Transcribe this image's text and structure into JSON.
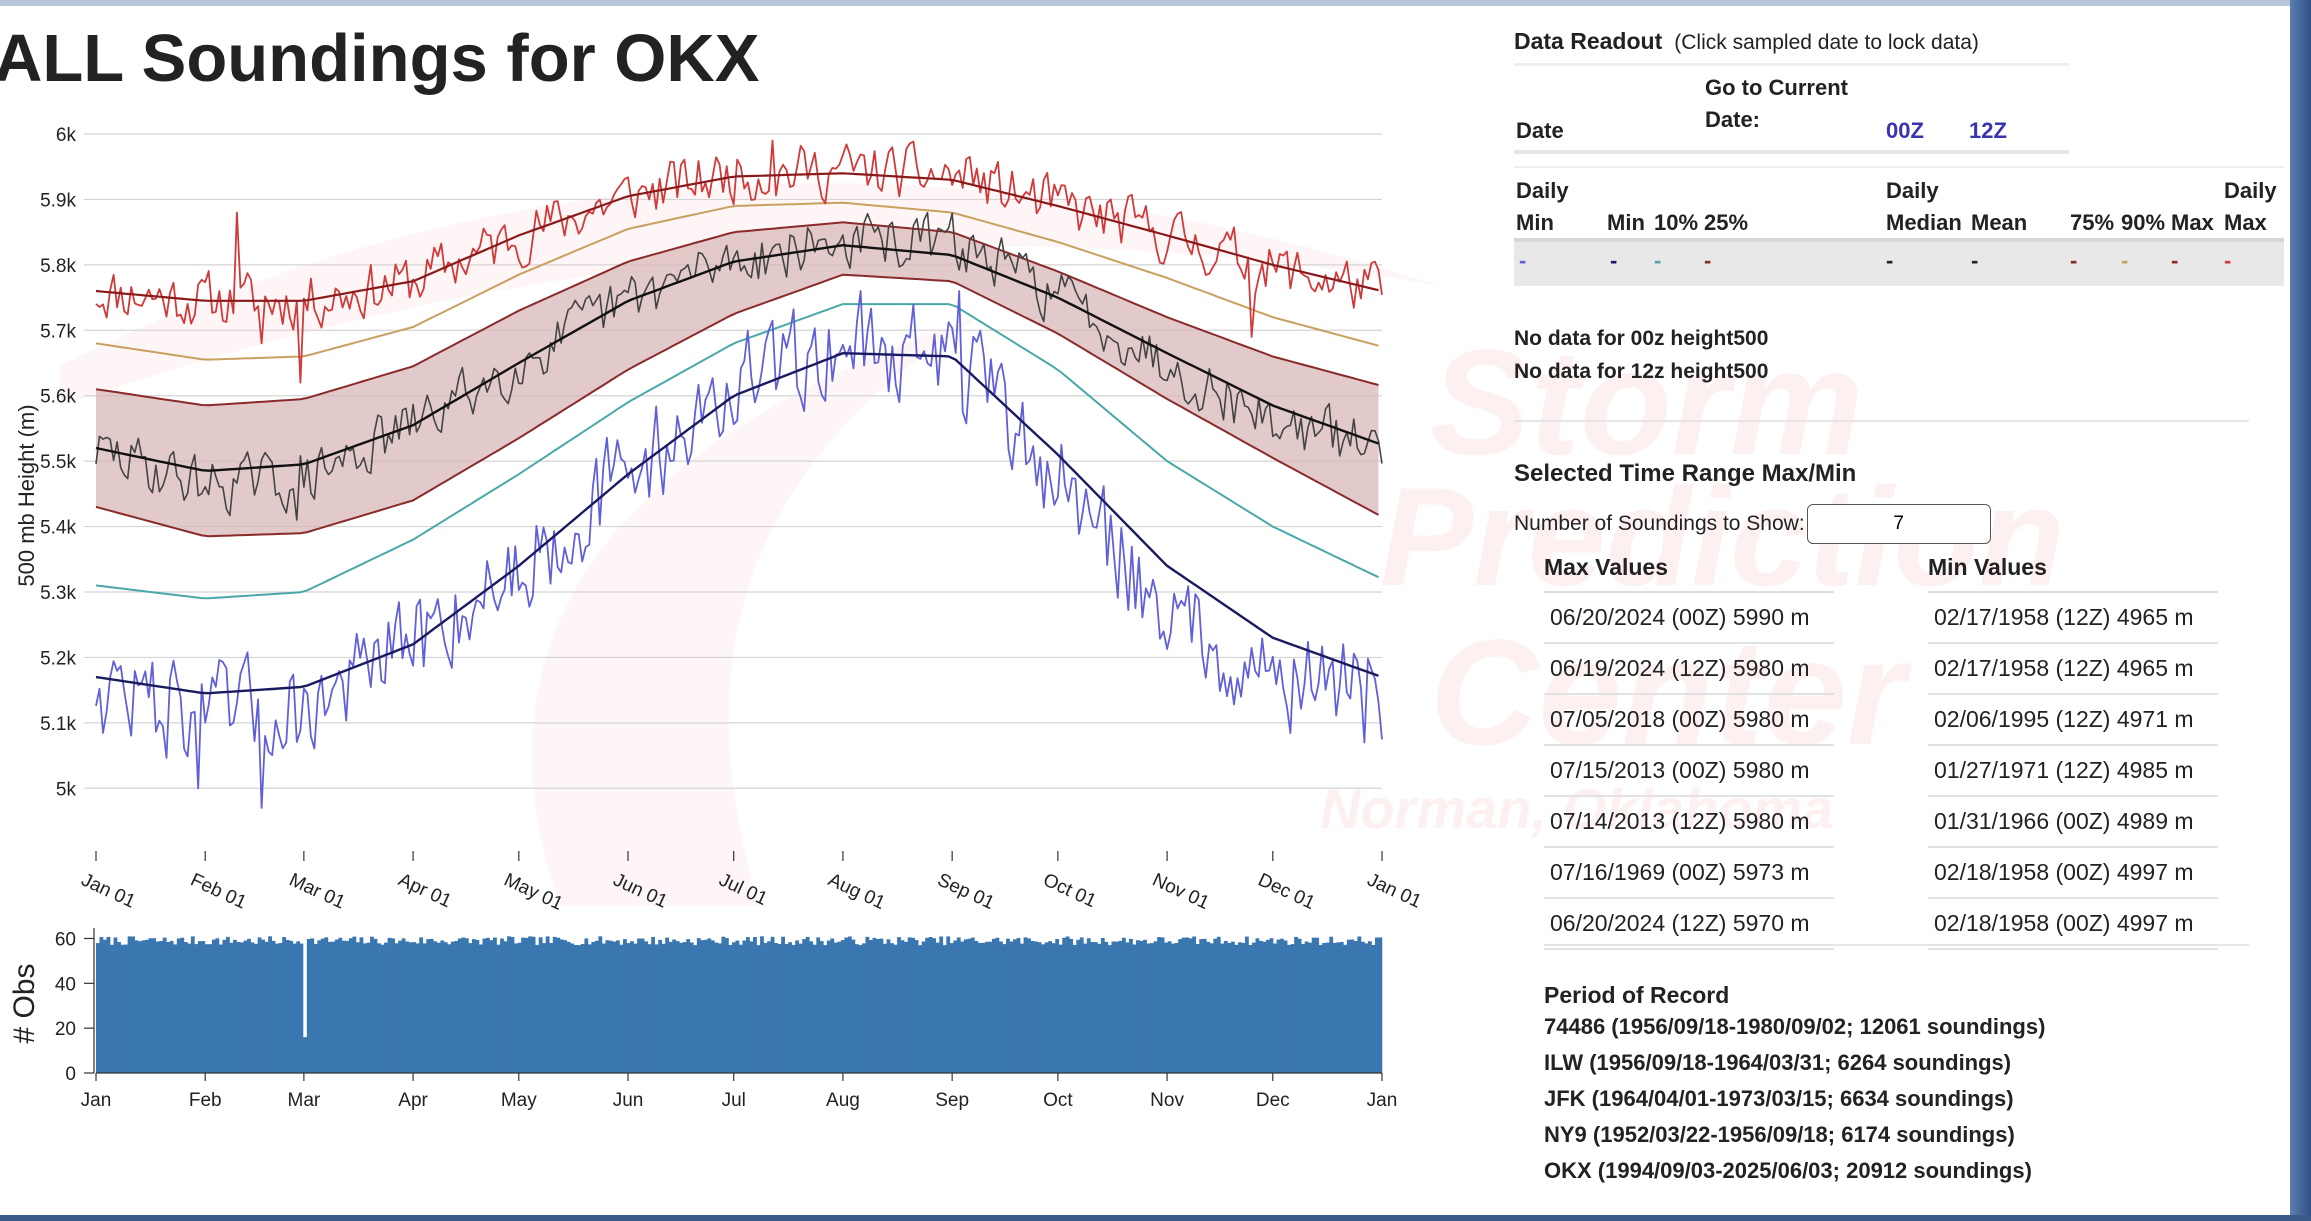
{
  "page_title": "ALL Soundings for OKX",
  "colors": {
    "max": "#d03a3a",
    "p90": "#c8a060",
    "p75": "#8a2a2a",
    "band_fill": "#d9b8b8",
    "mean": "#222222",
    "observed": "#444444",
    "p10": "#4aa8a8",
    "min": "#6060d8",
    "min_mean": "#1a1a60",
    "obs_bars": "#3a76b0",
    "link": "#3a33b0"
  },
  "chart_data": [
    {
      "type": "line",
      "xlabel": "",
      "ylabel": "500 mb Height (m)",
      "ylim": [
        4950,
        6000
      ],
      "yticks": [
        5000,
        5100,
        5200,
        5300,
        5400,
        5500,
        5600,
        5700,
        5800,
        5900,
        6000
      ],
      "ytick_labels": [
        "5k",
        "5.1k",
        "5.2k",
        "5.3k",
        "5.4k",
        "5.5k",
        "5.6k",
        "5.7k",
        "5.8k",
        "5.9k",
        "6k"
      ],
      "xlim": [
        0,
        365
      ],
      "x_ticks_day": [
        0,
        31,
        59,
        90,
        120,
        151,
        181,
        212,
        243,
        273,
        304,
        334,
        365
      ],
      "x_tick_labels": [
        "Jan 01",
        "Feb 01",
        "Mar 01",
        "Apr 01",
        "May 01",
        "Jun 01",
        "Jul 01",
        "Aug 01",
        "Sep 01",
        "Oct 01",
        "Nov 01",
        "Dec 01",
        "Jan 01"
      ],
      "grid": true,
      "climatology": {
        "x_day": [
          0,
          31,
          59,
          90,
          120,
          151,
          181,
          212,
          243,
          273,
          304,
          334,
          365
        ],
        "max": [
          5760,
          5745,
          5745,
          5775,
          5845,
          5905,
          5935,
          5940,
          5930,
          5890,
          5845,
          5800,
          5760
        ],
        "p90": [
          5680,
          5655,
          5660,
          5705,
          5785,
          5855,
          5890,
          5895,
          5880,
          5835,
          5780,
          5720,
          5675
        ],
        "p75_upper": [
          5610,
          5585,
          5595,
          5645,
          5730,
          5805,
          5850,
          5865,
          5850,
          5790,
          5720,
          5660,
          5615
        ],
        "mean": [
          5520,
          5485,
          5495,
          5555,
          5650,
          5745,
          5805,
          5830,
          5815,
          5750,
          5665,
          5585,
          5525
        ],
        "p25_lower": [
          5430,
          5385,
          5390,
          5440,
          5535,
          5640,
          5725,
          5785,
          5775,
          5695,
          5595,
          5505,
          5415
        ],
        "p10": [
          5310,
          5290,
          5300,
          5380,
          5480,
          5590,
          5680,
          5740,
          5740,
          5640,
          5500,
          5400,
          5320
        ],
        "min_mean": [
          5170,
          5145,
          5155,
          5220,
          5340,
          5480,
          5600,
          5665,
          5660,
          5510,
          5340,
          5230,
          5170
        ]
      },
      "observed_daily": {
        "max": {
          "center": [
            5760,
            5745,
            5745,
            5775,
            5845,
            5905,
            5940,
            5945,
            5935,
            5890,
            5845,
            5795,
            5760
          ],
          "amp": 38,
          "spikes": [
            [
              40,
              5880
            ],
            [
              47,
              5680
            ],
            [
              58,
              5620
            ],
            [
              112,
              5845
            ],
            [
              192,
              5990
            ],
            [
              248,
              5965
            ],
            [
              328,
              5690
            ]
          ]
        },
        "mean": {
          "center": [
            5515,
            5465,
            5470,
            5555,
            5650,
            5745,
            5810,
            5835,
            5835,
            5755,
            5650,
            5560,
            5520
          ],
          "amp": 38,
          "spikes": [
            [
              57,
              5410
            ]
          ]
        },
        "min": {
          "center": [
            5160,
            5110,
            5120,
            5220,
            5340,
            5480,
            5610,
            5680,
            5660,
            5470,
            5270,
            5170,
            5150
          ],
          "amp": 70,
          "spikes": [
            [
              29,
              5000
            ],
            [
              47,
              4970
            ],
            [
              217,
              5760
            ],
            [
              245,
              5760
            ],
            [
              354,
              5220
            ],
            [
              360,
              5070
            ]
          ]
        }
      }
    },
    {
      "type": "bar",
      "ylabel": "# Obs",
      "ylim": [
        0,
        62
      ],
      "yticks": [
        0,
        20,
        40,
        60
      ],
      "x_tick_labels": [
        "Jan",
        "Feb",
        "Mar",
        "Apr",
        "May",
        "Jun",
        "Jul",
        "Aug",
        "Sep",
        "Oct",
        "Nov",
        "Dec",
        "Jan"
      ],
      "days": 366,
      "typical_count": 59,
      "count_range": [
        57,
        61
      ],
      "exceptions": [
        {
          "day": 59,
          "value": 16
        }
      ]
    }
  ],
  "readout": {
    "title": "Data Readout",
    "hint": "(Click sampled date to lock data)",
    "date_label": "Date",
    "goto_label_1": "Go to Current",
    "goto_label_2": "Date:",
    "btn_00z": "00Z",
    "btn_12z": "12Z",
    "headers": {
      "daily_min_1": "Daily",
      "daily_min_2": "Min",
      "min": "Min",
      "p10": "10%",
      "p25": "25%",
      "daily_median_1": "Daily",
      "median": "Median",
      "mean": "Mean",
      "p75": "75%",
      "p90": "90%",
      "max": "Max",
      "daily_max_1": "Daily",
      "daily_max_2": "Max"
    },
    "values": [
      "-",
      "-",
      "-",
      "-",
      "-",
      "-",
      "-",
      "-",
      "-",
      "-"
    ],
    "no_data_00z": "No data for 00z height500",
    "no_data_12z": "No data for 12z height500"
  },
  "range": {
    "title": "Selected Time Range Max/Min",
    "soundings_label": "Number of Soundings to Show:",
    "soundings_value": "7",
    "max_title": "Max Values",
    "min_title": "Min Values",
    "max_values": [
      "06/20/2024 (00Z)  5990 m",
      "06/19/2024 (12Z)  5980 m",
      "07/05/2018 (00Z)  5980 m",
      "07/15/2013 (00Z)  5980 m",
      "07/14/2013 (12Z)  5980 m",
      "07/16/1969 (00Z)  5973 m",
      "06/20/2024 (12Z)  5970 m"
    ],
    "min_values": [
      "02/17/1958 (12Z)  4965 m",
      "02/17/1958 (12Z)  4965 m",
      "02/06/1995 (12Z)  4971 m",
      "01/27/1971 (12Z)  4985 m",
      "01/31/1966 (00Z)  4989 m",
      "02/18/1958 (00Z)  4997 m",
      "02/18/1958 (00Z)  4997 m"
    ]
  },
  "record": {
    "title": "Period of Record",
    "lines": [
      "74486 (1956/09/18-1980/09/02; 12061 soundings)",
      "ILW (1956/09/18-1964/03/31; 6264 soundings)",
      "JFK (1964/04/01-1973/03/15; 6634 soundings)",
      "NY9 (1952/03/22-1956/09/18; 6174 soundings)",
      "OKX (1994/09/03-2025/06/03; 20912 soundings)"
    ]
  },
  "watermark": {
    "line1": "Storm",
    "line2": "Prediction",
    "line3": "Center",
    "line4": "Norman, Oklahoma"
  }
}
